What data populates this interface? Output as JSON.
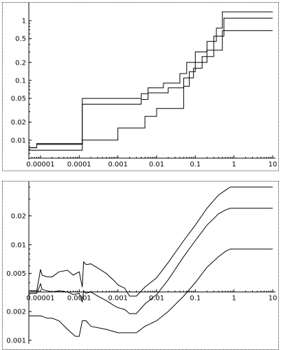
{
  "chart_data": [
    {
      "type": "line",
      "title": "",
      "xlabel": "",
      "ylabel": "",
      "xscale": "log",
      "yscale": "log",
      "xlim": [
        5e-06,
        10
      ],
      "ylim": [
        0.005,
        1.7
      ],
      "grid": false,
      "legend": "none",
      "x_ticks": [
        {
          "value": 1e-05,
          "label": "0.00001"
        },
        {
          "value": 0.0001,
          "label": "0.0001"
        },
        {
          "value": 0.001,
          "label": "0.001"
        },
        {
          "value": 0.01,
          "label": "0.01"
        },
        {
          "value": 0.1,
          "label": "0.1"
        },
        {
          "value": 1,
          "label": "1"
        },
        {
          "value": 10,
          "label": "10"
        }
      ],
      "y_ticks": [
        {
          "value": 0.01,
          "label": "0.01"
        },
        {
          "value": 0.02,
          "label": "0.02"
        },
        {
          "value": 0.05,
          "label": "0.05"
        },
        {
          "value": 0.1,
          "label": "0.1"
        },
        {
          "value": 0.2,
          "label": "0.2"
        },
        {
          "value": 0.5,
          "label": "0.5"
        },
        {
          "value": 1,
          "label": "1"
        }
      ],
      "series": [
        {
          "x": [
            5e-06,
            8e-06,
            8e-06,
            0.00012,
            0.00012,
            0.004,
            0.004,
            0.006,
            0.006,
            0.015,
            0.015,
            0.04,
            0.04,
            0.06,
            0.06,
            0.1,
            0.1,
            0.2,
            0.2,
            0.35,
            0.35,
            0.5,
            0.5,
            10
          ],
          "y": [
            0.0075,
            0.0075,
            0.0088,
            0.0088,
            0.05,
            0.05,
            0.06,
            0.06,
            0.075,
            0.075,
            0.09,
            0.09,
            0.13,
            0.13,
            0.2,
            0.2,
            0.3,
            0.3,
            0.45,
            0.45,
            0.75,
            0.75,
            1.4,
            1.4
          ]
        },
        {
          "x": [
            5e-06,
            8e-06,
            8e-06,
            0.00012,
            0.00012,
            0.004,
            0.004,
            0.006,
            0.006,
            0.02,
            0.02,
            0.05,
            0.05,
            0.09,
            0.09,
            0.15,
            0.15,
            0.3,
            0.3,
            0.55,
            0.55,
            10
          ],
          "y": [
            0.0075,
            0.0075,
            0.0085,
            0.0085,
            0.04,
            0.04,
            0.048,
            0.048,
            0.062,
            0.062,
            0.075,
            0.075,
            0.11,
            0.11,
            0.16,
            0.16,
            0.25,
            0.25,
            0.55,
            0.55,
            1.1,
            1.1
          ]
        },
        {
          "x": [
            5e-06,
            1.1e-05,
            1.1e-05,
            0.00012,
            0.00012,
            0.001,
            0.001,
            0.005,
            0.005,
            0.01,
            0.01,
            0.05,
            0.05,
            0.07,
            0.07,
            0.1,
            0.1,
            0.2,
            0.2,
            0.5,
            0.5,
            10
          ],
          "y": [
            0.0068,
            0.0068,
            0.0068,
            0.0068,
            0.01,
            0.01,
            0.016,
            0.016,
            0.025,
            0.025,
            0.034,
            0.034,
            0.08,
            0.08,
            0.14,
            0.14,
            0.2,
            0.2,
            0.32,
            0.32,
            0.68,
            0.68
          ]
        }
      ]
    },
    {
      "type": "line",
      "title": "",
      "xlabel": "",
      "ylabel": "",
      "xscale": "log",
      "yscale": "log",
      "xlim": [
        5e-06,
        10
      ],
      "ylim": [
        0.00095,
        0.04
      ],
      "x_axis_at_y": 0.0032,
      "grid": false,
      "legend": "none",
      "x_ticks": [
        {
          "value": 1e-05,
          "label": "0.00001"
        },
        {
          "value": 0.0001,
          "label": "0.0001"
        },
        {
          "value": 0.001,
          "label": "0.001"
        },
        {
          "value": 0.01,
          "label": "0.01"
        },
        {
          "value": 0.1,
          "label": "0.1"
        },
        {
          "value": 1,
          "label": "1"
        },
        {
          "value": 10,
          "label": "10"
        }
      ],
      "y_ticks": [
        {
          "value": 0.001,
          "label": "0.001"
        },
        {
          "value": 0.002,
          "label": "0.002"
        },
        {
          "value": 0.005,
          "label": "0.005"
        },
        {
          "value": 0.01,
          "label": "0.01"
        },
        {
          "value": 0.02,
          "label": "0.02"
        }
      ],
      "series": [
        {
          "x": [
            5e-06,
            8e-06,
            1e-05,
            1.1e-05,
            1.5e-05,
            2e-05,
            3e-05,
            5e-05,
            7e-05,
            0.0001,
            0.00012,
            0.00013,
            0.00015,
            0.0002,
            0.0003,
            0.0005,
            0.0008,
            0.001,
            0.0015,
            0.002,
            0.003,
            0.005,
            0.01,
            0.02,
            0.05,
            0.1,
            0.2,
            0.4,
            0.6,
            0.8,
            10
          ],
          "y": [
            0.0033,
            0.0033,
            0.0055,
            0.0048,
            0.0046,
            0.0046,
            0.0052,
            0.0054,
            0.0048,
            0.0052,
            0.0036,
            0.0066,
            0.0062,
            0.0063,
            0.0057,
            0.005,
            0.0042,
            0.0038,
            0.0035,
            0.0029,
            0.0029,
            0.0036,
            0.0045,
            0.0065,
            0.011,
            0.016,
            0.024,
            0.033,
            0.037,
            0.04,
            0.04
          ]
        },
        {
          "x": [
            5e-06,
            8e-06,
            1e-05,
            1.1e-05,
            1.5e-05,
            2e-05,
            3e-05,
            5e-05,
            7e-05,
            0.0001,
            0.00012,
            0.00013,
            0.00015,
            0.0002,
            0.0003,
            0.0005,
            0.0008,
            0.001,
            0.0015,
            0.002,
            0.003,
            0.005,
            0.01,
            0.02,
            0.05,
            0.1,
            0.2,
            0.4,
            0.6,
            0.8,
            10
          ],
          "y": [
            0.0031,
            0.0031,
            0.0039,
            0.0034,
            0.0033,
            0.0032,
            0.0033,
            0.0032,
            0.003,
            0.0031,
            0.0025,
            0.0033,
            0.0031,
            0.0032,
            0.0029,
            0.0026,
            0.0023,
            0.0022,
            0.0021,
            0.0019,
            0.0019,
            0.0024,
            0.003,
            0.0043,
            0.0075,
            0.011,
            0.016,
            0.021,
            0.023,
            0.024,
            0.024
          ]
        },
        {
          "x": [
            5e-06,
            8e-06,
            1e-05,
            1.5e-05,
            2e-05,
            3e-05,
            5e-05,
            8e-05,
            0.0001,
            0.00012,
            0.00015,
            0.0002,
            0.0005,
            0.001,
            0.002,
            0.003,
            0.005,
            0.01,
            0.02,
            0.05,
            0.1,
            0.2,
            0.4,
            0.6,
            0.8,
            10
          ],
          "y": [
            0.0018,
            0.0018,
            0.0018,
            0.0017,
            0.0017,
            0.0016,
            0.0013,
            0.0011,
            0.0011,
            0.0016,
            0.0016,
            0.0014,
            0.0013,
            0.0012,
            0.0012,
            0.0012,
            0.0014,
            0.0016,
            0.002,
            0.0029,
            0.004,
            0.0058,
            0.0075,
            0.0085,
            0.009,
            0.009
          ]
        }
      ]
    }
  ]
}
